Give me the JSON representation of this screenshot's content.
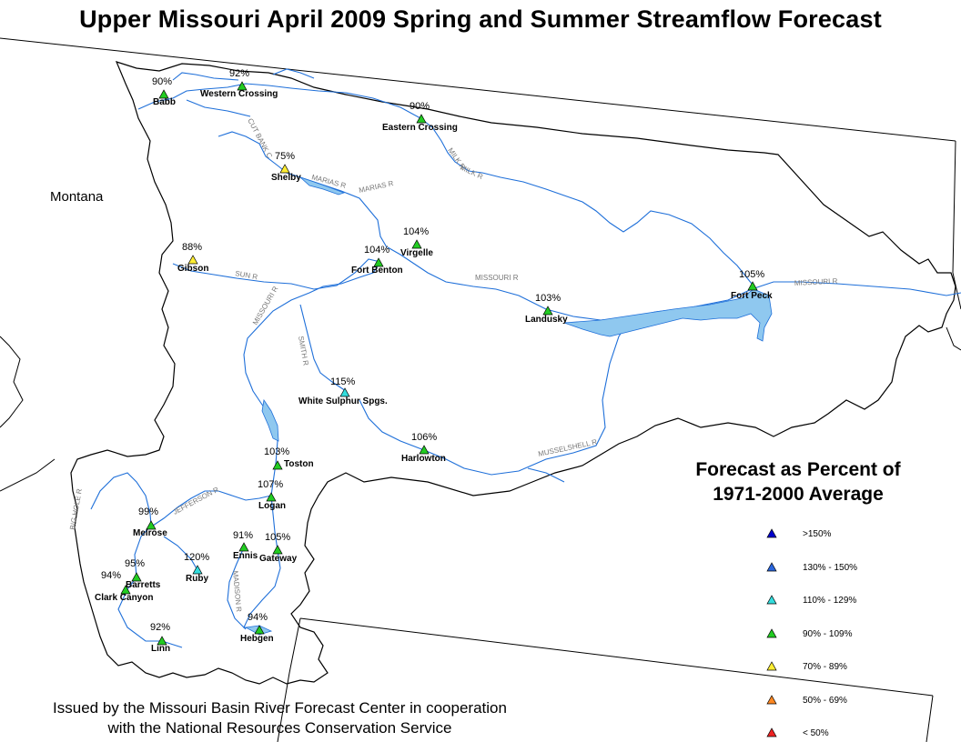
{
  "title": "Upper Missouri April 2009 Spring and Summer Streamflow Forecast",
  "state_label": "Montana",
  "legend": {
    "title_line1": "Forecast as Percent of",
    "title_line2": "1971-2000 Average",
    "items": [
      {
        "label": ">150%",
        "color": "#0000cc"
      },
      {
        "label": "130% - 150%",
        "color": "#2a66dd"
      },
      {
        "label": "110% - 129%",
        "color": "#33dddd"
      },
      {
        "label": "90% - 109%",
        "color": "#22cc22"
      },
      {
        "label": "70% - 89%",
        "color": "#ffee33"
      },
      {
        "label": "50% - 69%",
        "color": "#ff8822"
      },
      {
        "label": "< 50%",
        "color": "#ee2222"
      }
    ]
  },
  "stations": [
    {
      "name": "Babb",
      "percent": "90%"
    },
    {
      "name": "Western Crossing",
      "percent": "92%"
    },
    {
      "name": "Eastern Crossing",
      "percent": "90%"
    },
    {
      "name": "Shelby",
      "percent": "75%"
    },
    {
      "name": "Gibson",
      "percent": "88%"
    },
    {
      "name": "Virgelle",
      "percent": "104%"
    },
    {
      "name": "Fort Benton",
      "percent": "104%"
    },
    {
      "name": "Fort Peck",
      "percent": "105%"
    },
    {
      "name": "Landusky",
      "percent": "103%"
    },
    {
      "name": "White Sulphur Spgs.",
      "percent": "115%"
    },
    {
      "name": "Harlowton",
      "percent": "106%"
    },
    {
      "name": "Toston",
      "percent": "103%"
    },
    {
      "name": "Logan",
      "percent": "107%"
    },
    {
      "name": "Melrose",
      "percent": "99%"
    },
    {
      "name": "Ennis",
      "percent": "91%"
    },
    {
      "name": "Gateway",
      "percent": "105%"
    },
    {
      "name": "Ruby",
      "percent": "120%"
    },
    {
      "name": "Barretts",
      "percent": "95%"
    },
    {
      "name": "Clark Canyon",
      "percent": "94%"
    },
    {
      "name": "Linn",
      "percent": "92%"
    },
    {
      "name": "Hebgen",
      "percent": "94%"
    }
  ],
  "rivers": [
    {
      "name": "CUT BANK C"
    },
    {
      "name": "MILK R"
    },
    {
      "name": "MILK R"
    },
    {
      "name": "MARIAS R"
    },
    {
      "name": "MARIAS R"
    },
    {
      "name": "SUN R"
    },
    {
      "name": "MISSOURI R"
    },
    {
      "name": "MISSOURI R"
    },
    {
      "name": "MISSOURI R"
    },
    {
      "name": "SMITH R"
    },
    {
      "name": "MUSSELSHELL R"
    },
    {
      "name": "JEFFERSON R"
    },
    {
      "name": "BIG HOLE R"
    },
    {
      "name": "MADISON R"
    }
  ],
  "footer": {
    "line1": "Issued by the Missouri Basin River Forecast Center in cooperation",
    "line2": "with the National Resources Conservation Service"
  }
}
